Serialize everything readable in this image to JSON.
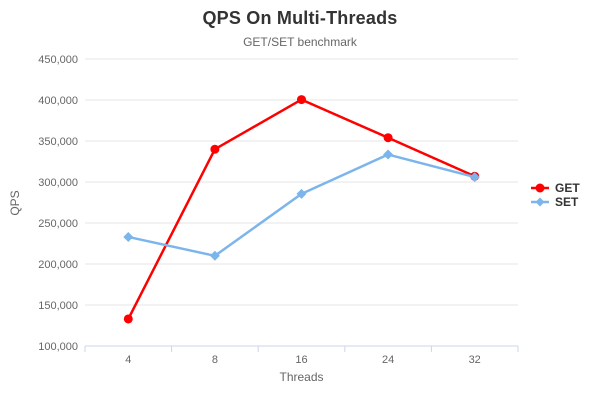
{
  "chart_data": {
    "type": "line",
    "title": "QPS On Multi-Threads",
    "subtitle": "GET/SET benchmark",
    "xlabel": "Threads",
    "ylabel": "QPS",
    "categories": [
      "4",
      "8",
      "16",
      "24",
      "32"
    ],
    "series": [
      {
        "name": "GET",
        "color": "#ff0000",
        "marker": "circle",
        "values": [
          133000,
          340000,
          400500,
          354000,
          307000
        ]
      },
      {
        "name": "SET",
        "color": "#7cb5ec",
        "marker": "diamond",
        "values": [
          233000,
          210000,
          285500,
          333500,
          306000
        ]
      }
    ],
    "ylim": [
      100000,
      450000
    ],
    "ytick_step": 50000,
    "ytick_labels": [
      "100,000",
      "150,000",
      "200,000",
      "250,000",
      "300,000",
      "350,000",
      "400,000",
      "450,000"
    ],
    "grid": "horizontal-only",
    "legend_position": "right",
    "colors": {
      "grid": "#e6e6e6",
      "axis_line": "#ccd6eb",
      "tick_text": "#666666",
      "title_text": "#333333",
      "subtitle_text": "#666666",
      "legend_text": "#333333",
      "background": "#ffffff"
    }
  }
}
